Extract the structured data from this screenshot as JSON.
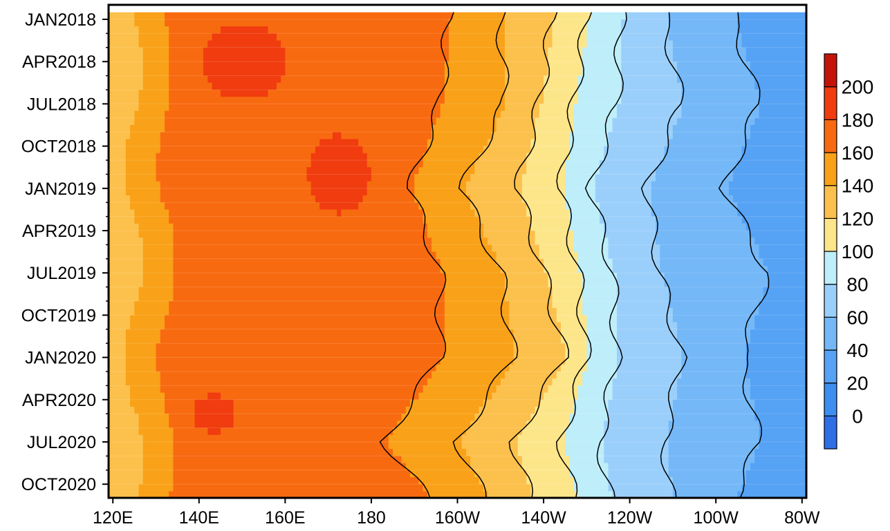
{
  "chart_data": {
    "type": "heatmap",
    "title": "",
    "xlabel": "",
    "ylabel": "",
    "x_ticks": [
      "120E",
      "140E",
      "160E",
      "180",
      "160W",
      "140W",
      "120W",
      "100W",
      "80W"
    ],
    "x_tick_degrees_east": [
      120,
      140,
      160,
      180,
      200,
      220,
      240,
      260,
      280
    ],
    "xlim": [
      119,
      281
    ],
    "y_ticks": [
      "JAN2018",
      "APR2018",
      "JUL2018",
      "OCT2018",
      "JAN2019",
      "APR2019",
      "JUL2019",
      "OCT2019",
      "JAN2020",
      "APR2020",
      "JUL2020",
      "OCT2020"
    ],
    "time_axis": "top = JAN2018, increasing downward, ends after OCT2020",
    "colorbar": {
      "labels": [
        "0",
        "20",
        "40",
        "60",
        "80",
        "100",
        "120",
        "140",
        "160",
        "180",
        "200"
      ],
      "levels": [
        0,
        20,
        40,
        60,
        80,
        100,
        120,
        140,
        160,
        180,
        200
      ],
      "colors": [
        "#2e6fe6",
        "#3d8ef0",
        "#56a2f5",
        "#74b8f8",
        "#9bcffb",
        "#bdeefa",
        "#fde68a",
        "#fcc04c",
        "#f9a118",
        "#f86a10",
        "#f03c0e",
        "#c41408"
      ],
      "position": "right"
    },
    "approx_band_boundaries": {
      "note": "longitude (degrees east) where the field drops below each level, sampled per month index",
      "month_index": [
        0,
        6,
        12,
        18,
        24,
        30,
        35
      ],
      "below_180": [
        null,
        null,
        null,
        null,
        null,
        null,
        null
      ],
      "below_160": [
        198,
        196,
        189,
        196,
        196,
        183,
        196
      ],
      "below_140": [
        210,
        211,
        201,
        210,
        213,
        200,
        208
      ],
      "below_120": [
        222,
        219,
        214,
        220,
        225,
        213,
        218
      ],
      "below_100": [
        230,
        227,
        224,
        228,
        230,
        224,
        228
      ],
      "below_80": [
        238,
        237,
        231,
        236,
        237,
        233,
        236
      ],
      "below_60": [
        248,
        252,
        244,
        247,
        252,
        248,
        250
      ],
      "below_40": [
        264,
        270,
        262,
        272,
        266,
        270,
        263
      ]
    }
  }
}
